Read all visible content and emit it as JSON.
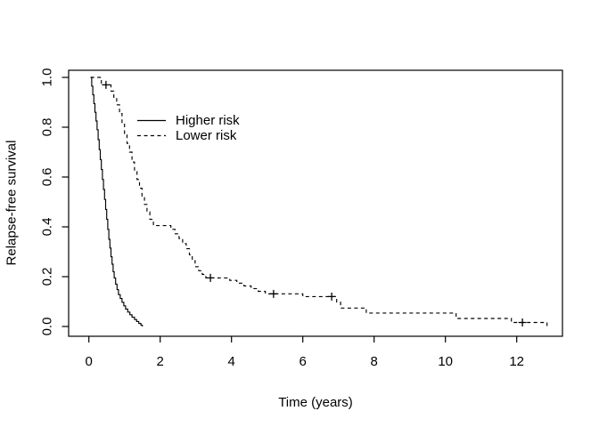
{
  "figure": {
    "background": "#ffffff",
    "axis_color": "#000000"
  },
  "chart_data": {
    "type": "line",
    "subtype": "kaplan_meier_step",
    "title": "",
    "xlabel": "Time (years)",
    "ylabel": "Relapse-free survival",
    "xlim": [
      0,
      13.3
    ],
    "ylim": [
      0,
      1.04
    ],
    "grid": false,
    "x_ticks": [
      0,
      2,
      4,
      6,
      8,
      10,
      12
    ],
    "x_tick_labels": [
      "0",
      "2",
      "4",
      "6",
      "8",
      "10",
      "12"
    ],
    "y_ticks": [
      0,
      0.2,
      0.4,
      0.6,
      0.8,
      1.0
    ],
    "y_tick_labels": [
      "0.0",
      "0.2",
      "0.4",
      "0.6",
      "0.8",
      "1.0"
    ],
    "line_color": "#000000",
    "legend": {
      "position": "inset-upper-left",
      "entries": [
        {
          "label": "Higher risk",
          "line": "solid"
        },
        {
          "label": "Lower risk",
          "line": "dashed"
        }
      ]
    },
    "series": [
      {
        "name": "Higher risk",
        "line": "solid",
        "color": "#000000",
        "points": [
          [
            0.05,
            1.0
          ],
          [
            0.08,
            0.965
          ],
          [
            0.11,
            0.93
          ],
          [
            0.14,
            0.895
          ],
          [
            0.17,
            0.86
          ],
          [
            0.2,
            0.825
          ],
          [
            0.23,
            0.79
          ],
          [
            0.26,
            0.75
          ],
          [
            0.29,
            0.71
          ],
          [
            0.32,
            0.67
          ],
          [
            0.35,
            0.63
          ],
          [
            0.38,
            0.59
          ],
          [
            0.41,
            0.55
          ],
          [
            0.44,
            0.51
          ],
          [
            0.47,
            0.47
          ],
          [
            0.5,
            0.43
          ],
          [
            0.53,
            0.39
          ],
          [
            0.56,
            0.35
          ],
          [
            0.59,
            0.315
          ],
          [
            0.62,
            0.28
          ],
          [
            0.65,
            0.25
          ],
          [
            0.68,
            0.22
          ],
          [
            0.71,
            0.195
          ],
          [
            0.75,
            0.17
          ],
          [
            0.79,
            0.148
          ],
          [
            0.83,
            0.128
          ],
          [
            0.88,
            0.112
          ],
          [
            0.93,
            0.097
          ],
          [
            0.98,
            0.083
          ],
          [
            1.03,
            0.07
          ],
          [
            1.09,
            0.058
          ],
          [
            1.15,
            0.047
          ],
          [
            1.21,
            0.037
          ],
          [
            1.28,
            0.028
          ],
          [
            1.34,
            0.02
          ],
          [
            1.4,
            0.012
          ],
          [
            1.46,
            0.005
          ],
          [
            1.5,
            0.0
          ]
        ],
        "censors": []
      },
      {
        "name": "Lower risk",
        "line": "dashed",
        "color": "#000000",
        "points": [
          [
            0.05,
            1.0
          ],
          [
            0.35,
            0.97
          ],
          [
            0.62,
            0.945
          ],
          [
            0.7,
            0.92
          ],
          [
            0.78,
            0.89
          ],
          [
            0.86,
            0.855
          ],
          [
            0.93,
            0.815
          ],
          [
            1.0,
            0.775
          ],
          [
            1.07,
            0.735
          ],
          [
            1.14,
            0.7
          ],
          [
            1.21,
            0.66
          ],
          [
            1.28,
            0.625
          ],
          [
            1.35,
            0.59
          ],
          [
            1.42,
            0.555
          ],
          [
            1.49,
            0.52
          ],
          [
            1.56,
            0.49
          ],
          [
            1.63,
            0.46
          ],
          [
            1.71,
            0.43
          ],
          [
            1.81,
            0.405
          ],
          [
            2.3,
            0.39
          ],
          [
            2.42,
            0.372
          ],
          [
            2.53,
            0.353
          ],
          [
            2.63,
            0.333
          ],
          [
            2.73,
            0.312
          ],
          [
            2.82,
            0.288
          ],
          [
            2.9,
            0.264
          ],
          [
            2.98,
            0.24
          ],
          [
            3.08,
            0.224
          ],
          [
            3.18,
            0.209
          ],
          [
            3.28,
            0.195
          ],
          [
            3.95,
            0.185
          ],
          [
            4.15,
            0.174
          ],
          [
            4.35,
            0.163
          ],
          [
            4.55,
            0.152
          ],
          [
            4.75,
            0.141
          ],
          [
            4.95,
            0.131
          ],
          [
            6.0,
            0.12
          ],
          [
            6.95,
            0.098
          ],
          [
            7.06,
            0.074
          ],
          [
            7.78,
            0.054
          ],
          [
            10.3,
            0.032
          ],
          [
            11.85,
            0.016
          ],
          [
            12.85,
            0.0
          ]
        ],
        "censors": [
          [
            0.48,
            0.97
          ],
          [
            3.41,
            0.195
          ],
          [
            5.18,
            0.131
          ],
          [
            6.81,
            0.12
          ],
          [
            12.16,
            0.016
          ]
        ]
      }
    ]
  }
}
